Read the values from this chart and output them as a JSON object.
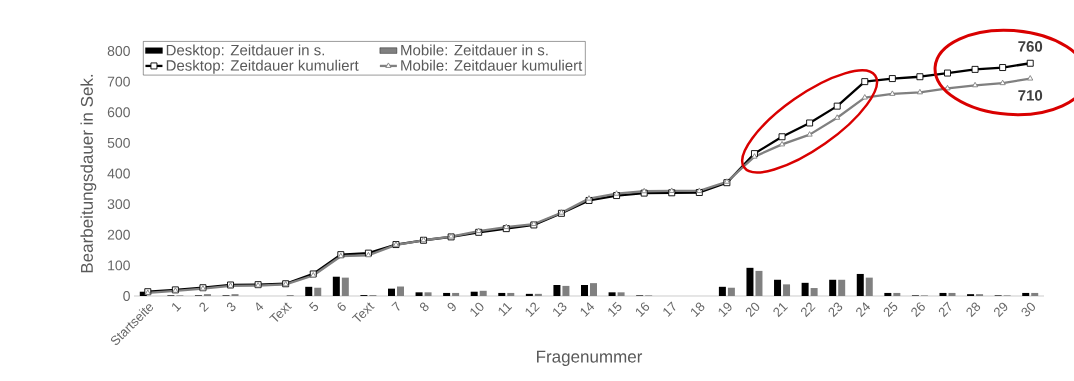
{
  "chart_data": {
    "type": "bar",
    "xlabel": "Fragenummer",
    "ylabel": "Bearbeitungsdauer in Sek.",
    "categories": [
      "Startseite",
      "1",
      "2",
      "3",
      "4",
      "Text",
      "5",
      "6",
      "Text",
      "7",
      "8",
      "9",
      "10",
      "11",
      "12",
      "13",
      "14",
      "15",
      "16",
      "17",
      "18",
      "19",
      "20",
      "21",
      "22",
      "23",
      "24",
      "25",
      "26",
      "27",
      "28",
      "29",
      "30"
    ],
    "series": [
      {
        "name": "Desktop: Zeitdauer in s.",
        "color": "#000000",
        "values": [
          14,
          2,
          2,
          2,
          0,
          0,
          30,
          63,
          3,
          24,
          12,
          10,
          14,
          10,
          7,
          36,
          36,
          12,
          2,
          0,
          0,
          30,
          92,
          53,
          43,
          53,
          72,
          10,
          2,
          10,
          6,
          2,
          10
        ]
      },
      {
        "name": "Mobile: Zeitdauer in s.",
        "color": "#808080",
        "values": [
          0,
          2,
          6,
          6,
          0,
          3,
          27,
          60,
          3,
          31,
          12,
          10,
          17,
          10,
          7,
          33,
          42,
          12,
          2,
          0,
          0,
          27,
          82,
          38,
          26,
          53,
          60,
          10,
          2,
          10,
          6,
          2,
          10
        ]
      },
      {
        "name": "Desktop: Zeitdauer kumuliert",
        "type": "line",
        "color": "#000000",
        "marker": "square",
        "values": [
          14,
          20,
          27,
          36,
          37,
          40,
          72,
          135,
          140,
          168,
          182,
          193,
          208,
          220,
          232,
          270,
          312,
          328,
          336,
          337,
          338,
          370,
          465,
          520,
          565,
          620,
          700,
          710,
          716,
          728,
          740,
          746,
          760
        ]
      },
      {
        "name": "Mobile: Zeitdauer kumuliert",
        "type": "line",
        "color": "#808080",
        "marker": "triangle",
        "values": [
          10,
          17,
          24,
          33,
          34,
          38,
          67,
          130,
          133,
          167,
          182,
          194,
          212,
          225,
          235,
          272,
          318,
          334,
          342,
          343,
          343,
          373,
          455,
          495,
          527,
          582,
          648,
          660,
          665,
          678,
          688,
          695,
          710
        ]
      }
    ],
    "ylim": [
      0,
      800
    ],
    "yticks": [
      0,
      100,
      200,
      300,
      400,
      500,
      600,
      700,
      800
    ],
    "legend": "top left",
    "grid": false,
    "annotations": [
      {
        "text": "760",
        "x": "30",
        "y": 760
      },
      {
        "text": "710",
        "x": "30",
        "y": 710
      }
    ]
  }
}
